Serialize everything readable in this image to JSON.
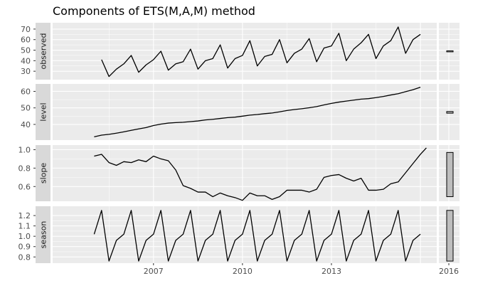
{
  "chart_data": {
    "type": "line",
    "title": "Components of ETS(M,A,M) method",
    "x_ticks": [
      2007,
      2010,
      2013,
      2016
    ],
    "x_range": [
      2003.6,
      2016.55
    ],
    "panel_bg": "#ebebeb",
    "grid_color": "#ffffff",
    "line_color": "#000000",
    "strip_bg": "#d9d9d9",
    "bar_fill": "#bebebe",
    "panels": [
      {
        "name": "observed",
        "ylim": [
          22,
          76
        ],
        "yticks": [
          30,
          40,
          50,
          60,
          70
        ],
        "ytick_labels": [
          "30",
          "40",
          "50",
          "60",
          "70"
        ],
        "scale_bar": [
          48.4,
          49.4
        ],
        "points": [
          [
            2005.25,
            41
          ],
          [
            2005.5,
            25
          ],
          [
            2005.75,
            32
          ],
          [
            2006.0,
            37
          ],
          [
            2006.25,
            45
          ],
          [
            2006.5,
            29
          ],
          [
            2006.75,
            36
          ],
          [
            2007.0,
            41
          ],
          [
            2007.25,
            49
          ],
          [
            2007.5,
            31
          ],
          [
            2007.75,
            37
          ],
          [
            2008.0,
            39
          ],
          [
            2008.25,
            51
          ],
          [
            2008.5,
            32
          ],
          [
            2008.75,
            40
          ],
          [
            2009.0,
            42
          ],
          [
            2009.25,
            55
          ],
          [
            2009.5,
            33
          ],
          [
            2009.75,
            42
          ],
          [
            2010.0,
            45
          ],
          [
            2010.25,
            59
          ],
          [
            2010.5,
            35
          ],
          [
            2010.75,
            44
          ],
          [
            2011.0,
            46
          ],
          [
            2011.25,
            60
          ],
          [
            2011.5,
            38
          ],
          [
            2011.75,
            47
          ],
          [
            2012.0,
            51
          ],
          [
            2012.25,
            61
          ],
          [
            2012.5,
            39
          ],
          [
            2012.75,
            52
          ],
          [
            2013.0,
            54
          ],
          [
            2013.25,
            66
          ],
          [
            2013.5,
            40
          ],
          [
            2013.75,
            51
          ],
          [
            2014.0,
            57
          ],
          [
            2014.25,
            65
          ],
          [
            2014.5,
            42
          ],
          [
            2014.75,
            54
          ],
          [
            2015.0,
            59
          ],
          [
            2015.25,
            72
          ],
          [
            2015.5,
            47
          ],
          [
            2015.75,
            60
          ],
          [
            2016.0,
            65
          ]
        ]
      },
      {
        "name": "level",
        "ylim": [
          30.5,
          64.5
        ],
        "yticks": [
          40,
          50,
          60
        ],
        "ytick_labels": [
          "40",
          "50",
          "60"
        ],
        "scale_bar": [
          46.8,
          47.8
        ],
        "points": [
          [
            2005.0,
            32.5
          ],
          [
            2005.25,
            33.5
          ],
          [
            2005.5,
            34
          ],
          [
            2005.75,
            34.7
          ],
          [
            2006.0,
            35.5
          ],
          [
            2006.25,
            36.4
          ],
          [
            2006.5,
            37.3
          ],
          [
            2006.75,
            38.1
          ],
          [
            2007.0,
            39.3
          ],
          [
            2007.25,
            40.2
          ],
          [
            2007.5,
            40.8
          ],
          [
            2007.75,
            41.1
          ],
          [
            2008.0,
            41.3
          ],
          [
            2008.25,
            41.7
          ],
          [
            2008.5,
            42.1
          ],
          [
            2008.75,
            42.7
          ],
          [
            2009.0,
            43.1
          ],
          [
            2009.25,
            43.6
          ],
          [
            2009.5,
            44.1
          ],
          [
            2009.75,
            44.4
          ],
          [
            2010.0,
            45.0
          ],
          [
            2010.25,
            45.6
          ],
          [
            2010.5,
            46.0
          ],
          [
            2010.75,
            46.5
          ],
          [
            2011.0,
            46.9
          ],
          [
            2011.25,
            47.6
          ],
          [
            2011.5,
            48.4
          ],
          [
            2011.75,
            49.0
          ],
          [
            2012.0,
            49.5
          ],
          [
            2012.25,
            50.1
          ],
          [
            2012.5,
            50.8
          ],
          [
            2012.75,
            51.8
          ],
          [
            2013.0,
            52.7
          ],
          [
            2013.25,
            53.5
          ],
          [
            2013.5,
            54.1
          ],
          [
            2013.75,
            54.7
          ],
          [
            2014.0,
            55.3
          ],
          [
            2014.25,
            55.6
          ],
          [
            2014.5,
            56.2
          ],
          [
            2014.75,
            56.9
          ],
          [
            2015.0,
            57.8
          ],
          [
            2015.25,
            58.6
          ],
          [
            2015.5,
            59.8
          ],
          [
            2015.75,
            61.0
          ],
          [
            2016.0,
            62.5
          ]
        ]
      },
      {
        "name": "slope",
        "ylim": [
          0.44,
          1.05
        ],
        "yticks": [
          0.6,
          0.8,
          1.0
        ],
        "ytick_labels": [
          "0.6",
          "0.8",
          "1.0"
        ],
        "scale_bar": [
          0.49,
          0.97
        ],
        "points": [
          [
            2005.0,
            0.93
          ],
          [
            2005.25,
            0.95
          ],
          [
            2005.5,
            0.86
          ],
          [
            2005.75,
            0.83
          ],
          [
            2006.0,
            0.87
          ],
          [
            2006.25,
            0.86
          ],
          [
            2006.5,
            0.89
          ],
          [
            2006.75,
            0.87
          ],
          [
            2007.0,
            0.93
          ],
          [
            2007.25,
            0.9
          ],
          [
            2007.5,
            0.88
          ],
          [
            2007.75,
            0.78
          ],
          [
            2008.0,
            0.61
          ],
          [
            2008.25,
            0.58
          ],
          [
            2008.5,
            0.54
          ],
          [
            2008.75,
            0.54
          ],
          [
            2009.0,
            0.49
          ],
          [
            2009.25,
            0.53
          ],
          [
            2009.5,
            0.5
          ],
          [
            2009.75,
            0.48
          ],
          [
            2010.0,
            0.45
          ],
          [
            2010.25,
            0.53
          ],
          [
            2010.5,
            0.5
          ],
          [
            2010.75,
            0.5
          ],
          [
            2011.0,
            0.46
          ],
          [
            2011.25,
            0.49
          ],
          [
            2011.5,
            0.56
          ],
          [
            2011.75,
            0.56
          ],
          [
            2012.0,
            0.56
          ],
          [
            2012.25,
            0.54
          ],
          [
            2012.5,
            0.57
          ],
          [
            2012.75,
            0.7
          ],
          [
            2013.0,
            0.72
          ],
          [
            2013.25,
            0.73
          ],
          [
            2013.5,
            0.69
          ],
          [
            2013.75,
            0.66
          ],
          [
            2014.0,
            0.69
          ],
          [
            2014.25,
            0.56
          ],
          [
            2014.5,
            0.56
          ],
          [
            2014.75,
            0.57
          ],
          [
            2015.0,
            0.63
          ],
          [
            2015.25,
            0.65
          ],
          [
            2015.5,
            0.75
          ],
          [
            2015.75,
            0.85
          ],
          [
            2016.0,
            0.95
          ],
          [
            2016.2,
            1.02
          ]
        ]
      },
      {
        "name": "season",
        "ylim": [
          0.74,
          1.29
        ],
        "yticks": [
          0.8,
          0.9,
          1.0,
          1.1,
          1.2
        ],
        "ytick_labels": [
          "0.8",
          "0.9",
          "1.0",
          "1.1",
          "1.2"
        ],
        "scale_bar": [
          0.76,
          1.25
        ],
        "points": [
          [
            2005.0,
            1.02
          ],
          [
            2005.25,
            1.25
          ],
          [
            2005.5,
            0.76
          ],
          [
            2005.75,
            0.96
          ],
          [
            2006.0,
            1.02
          ],
          [
            2006.25,
            1.25
          ],
          [
            2006.5,
            0.76
          ],
          [
            2006.75,
            0.96
          ],
          [
            2007.0,
            1.02
          ],
          [
            2007.25,
            1.25
          ],
          [
            2007.5,
            0.76
          ],
          [
            2007.75,
            0.96
          ],
          [
            2008.0,
            1.02
          ],
          [
            2008.25,
            1.25
          ],
          [
            2008.5,
            0.76
          ],
          [
            2008.75,
            0.96
          ],
          [
            2009.0,
            1.02
          ],
          [
            2009.25,
            1.25
          ],
          [
            2009.5,
            0.76
          ],
          [
            2009.75,
            0.96
          ],
          [
            2010.0,
            1.02
          ],
          [
            2010.25,
            1.25
          ],
          [
            2010.5,
            0.76
          ],
          [
            2010.75,
            0.96
          ],
          [
            2011.0,
            1.02
          ],
          [
            2011.25,
            1.25
          ],
          [
            2011.5,
            0.76
          ],
          [
            2011.75,
            0.96
          ],
          [
            2012.0,
            1.02
          ],
          [
            2012.25,
            1.25
          ],
          [
            2012.5,
            0.76
          ],
          [
            2012.75,
            0.96
          ],
          [
            2013.0,
            1.02
          ],
          [
            2013.25,
            1.25
          ],
          [
            2013.5,
            0.76
          ],
          [
            2013.75,
            0.96
          ],
          [
            2014.0,
            1.02
          ],
          [
            2014.25,
            1.25
          ],
          [
            2014.5,
            0.76
          ],
          [
            2014.75,
            0.96
          ],
          [
            2015.0,
            1.02
          ],
          [
            2015.25,
            1.25
          ],
          [
            2015.5,
            0.76
          ],
          [
            2015.75,
            0.96
          ],
          [
            2016.0,
            1.02
          ]
        ]
      }
    ]
  }
}
